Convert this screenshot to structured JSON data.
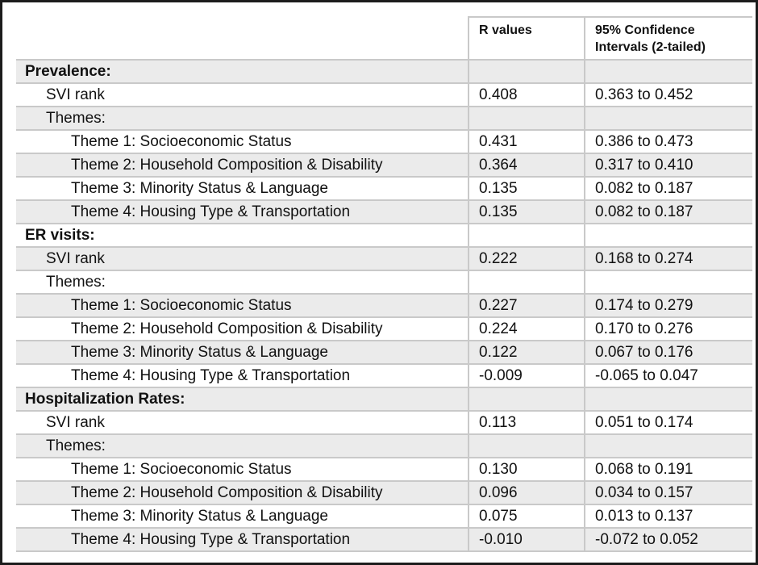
{
  "table": {
    "columns": {
      "label": "",
      "r": "R values",
      "ci": "95% Confidence Intervals (2-tailed)"
    },
    "colors": {
      "shaded_row": "#ebebeb",
      "grid_line": "#c9c9c9",
      "frame": "#1c1c1c",
      "text": "#111111"
    },
    "rows": [
      {
        "label": "Prevalence:",
        "r": "",
        "ci": "",
        "indent": 0,
        "bold": true,
        "shaded": true
      },
      {
        "label": "SVI rank",
        "r": "0.408",
        "ci": "0.363 to 0.452",
        "indent": 1,
        "bold": false,
        "shaded": false
      },
      {
        "label": "Themes:",
        "r": "",
        "ci": "",
        "indent": 1,
        "bold": false,
        "shaded": true
      },
      {
        "label": "Theme 1: Socioeconomic Status",
        "r": "0.431",
        "ci": "0.386 to 0.473",
        "indent": 2,
        "bold": false,
        "shaded": false
      },
      {
        "label": "Theme 2: Household Composition & Disability",
        "r": "0.364",
        "ci": "0.317 to 0.410",
        "indent": 2,
        "bold": false,
        "shaded": true
      },
      {
        "label": "Theme 3: Minority Status & Language",
        "r": "0.135",
        "ci": "0.082 to 0.187",
        "indent": 2,
        "bold": false,
        "shaded": false
      },
      {
        "label": "Theme 4: Housing Type & Transportation",
        "r": "0.135",
        "ci": "0.082 to 0.187",
        "indent": 2,
        "bold": false,
        "shaded": true
      },
      {
        "label": "ER visits:",
        "r": "",
        "ci": "",
        "indent": 0,
        "bold": true,
        "shaded": false
      },
      {
        "label": "SVI rank",
        "r": "0.222",
        "ci": "0.168 to 0.274",
        "indent": 1,
        "bold": false,
        "shaded": true
      },
      {
        "label": "Themes:",
        "r": "",
        "ci": "",
        "indent": 1,
        "bold": false,
        "shaded": false
      },
      {
        "label": "Theme 1: Socioeconomic Status",
        "r": "0.227",
        "ci": "0.174 to 0.279",
        "indent": 2,
        "bold": false,
        "shaded": true
      },
      {
        "label": "Theme 2: Household Composition & Disability",
        "r": "0.224",
        "ci": "0.170 to 0.276",
        "indent": 2,
        "bold": false,
        "shaded": false
      },
      {
        "label": "Theme 3: Minority Status & Language",
        "r": "0.122",
        "ci": "0.067 to 0.176",
        "indent": 2,
        "bold": false,
        "shaded": true
      },
      {
        "label": "Theme 4: Housing Type & Transportation",
        "r": "-0.009",
        "ci": "-0.065 to 0.047",
        "indent": 2,
        "bold": false,
        "shaded": false
      },
      {
        "label": "Hospitalization Rates:",
        "r": "",
        "ci": "",
        "indent": 0,
        "bold": true,
        "shaded": true
      },
      {
        "label": "SVI rank",
        "r": "0.113",
        "ci": "0.051 to 0.174",
        "indent": 1,
        "bold": false,
        "shaded": false
      },
      {
        "label": "Themes:",
        "r": "",
        "ci": "",
        "indent": 1,
        "bold": false,
        "shaded": true
      },
      {
        "label": "Theme 1: Socioeconomic Status",
        "r": "0.130",
        "ci": "0.068 to 0.191",
        "indent": 2,
        "bold": false,
        "shaded": false
      },
      {
        "label": "Theme 2: Household Composition & Disability",
        "r": "0.096",
        "ci": "0.034 to 0.157",
        "indent": 2,
        "bold": false,
        "shaded": true
      },
      {
        "label": "Theme 3: Minority Status & Language",
        "r": "0.075",
        "ci": "0.013 to 0.137",
        "indent": 2,
        "bold": false,
        "shaded": false
      },
      {
        "label": "Theme 4: Housing Type & Transportation",
        "r": "-0.010",
        "ci": "-0.072 to 0.052",
        "indent": 2,
        "bold": false,
        "shaded": true
      }
    ]
  }
}
